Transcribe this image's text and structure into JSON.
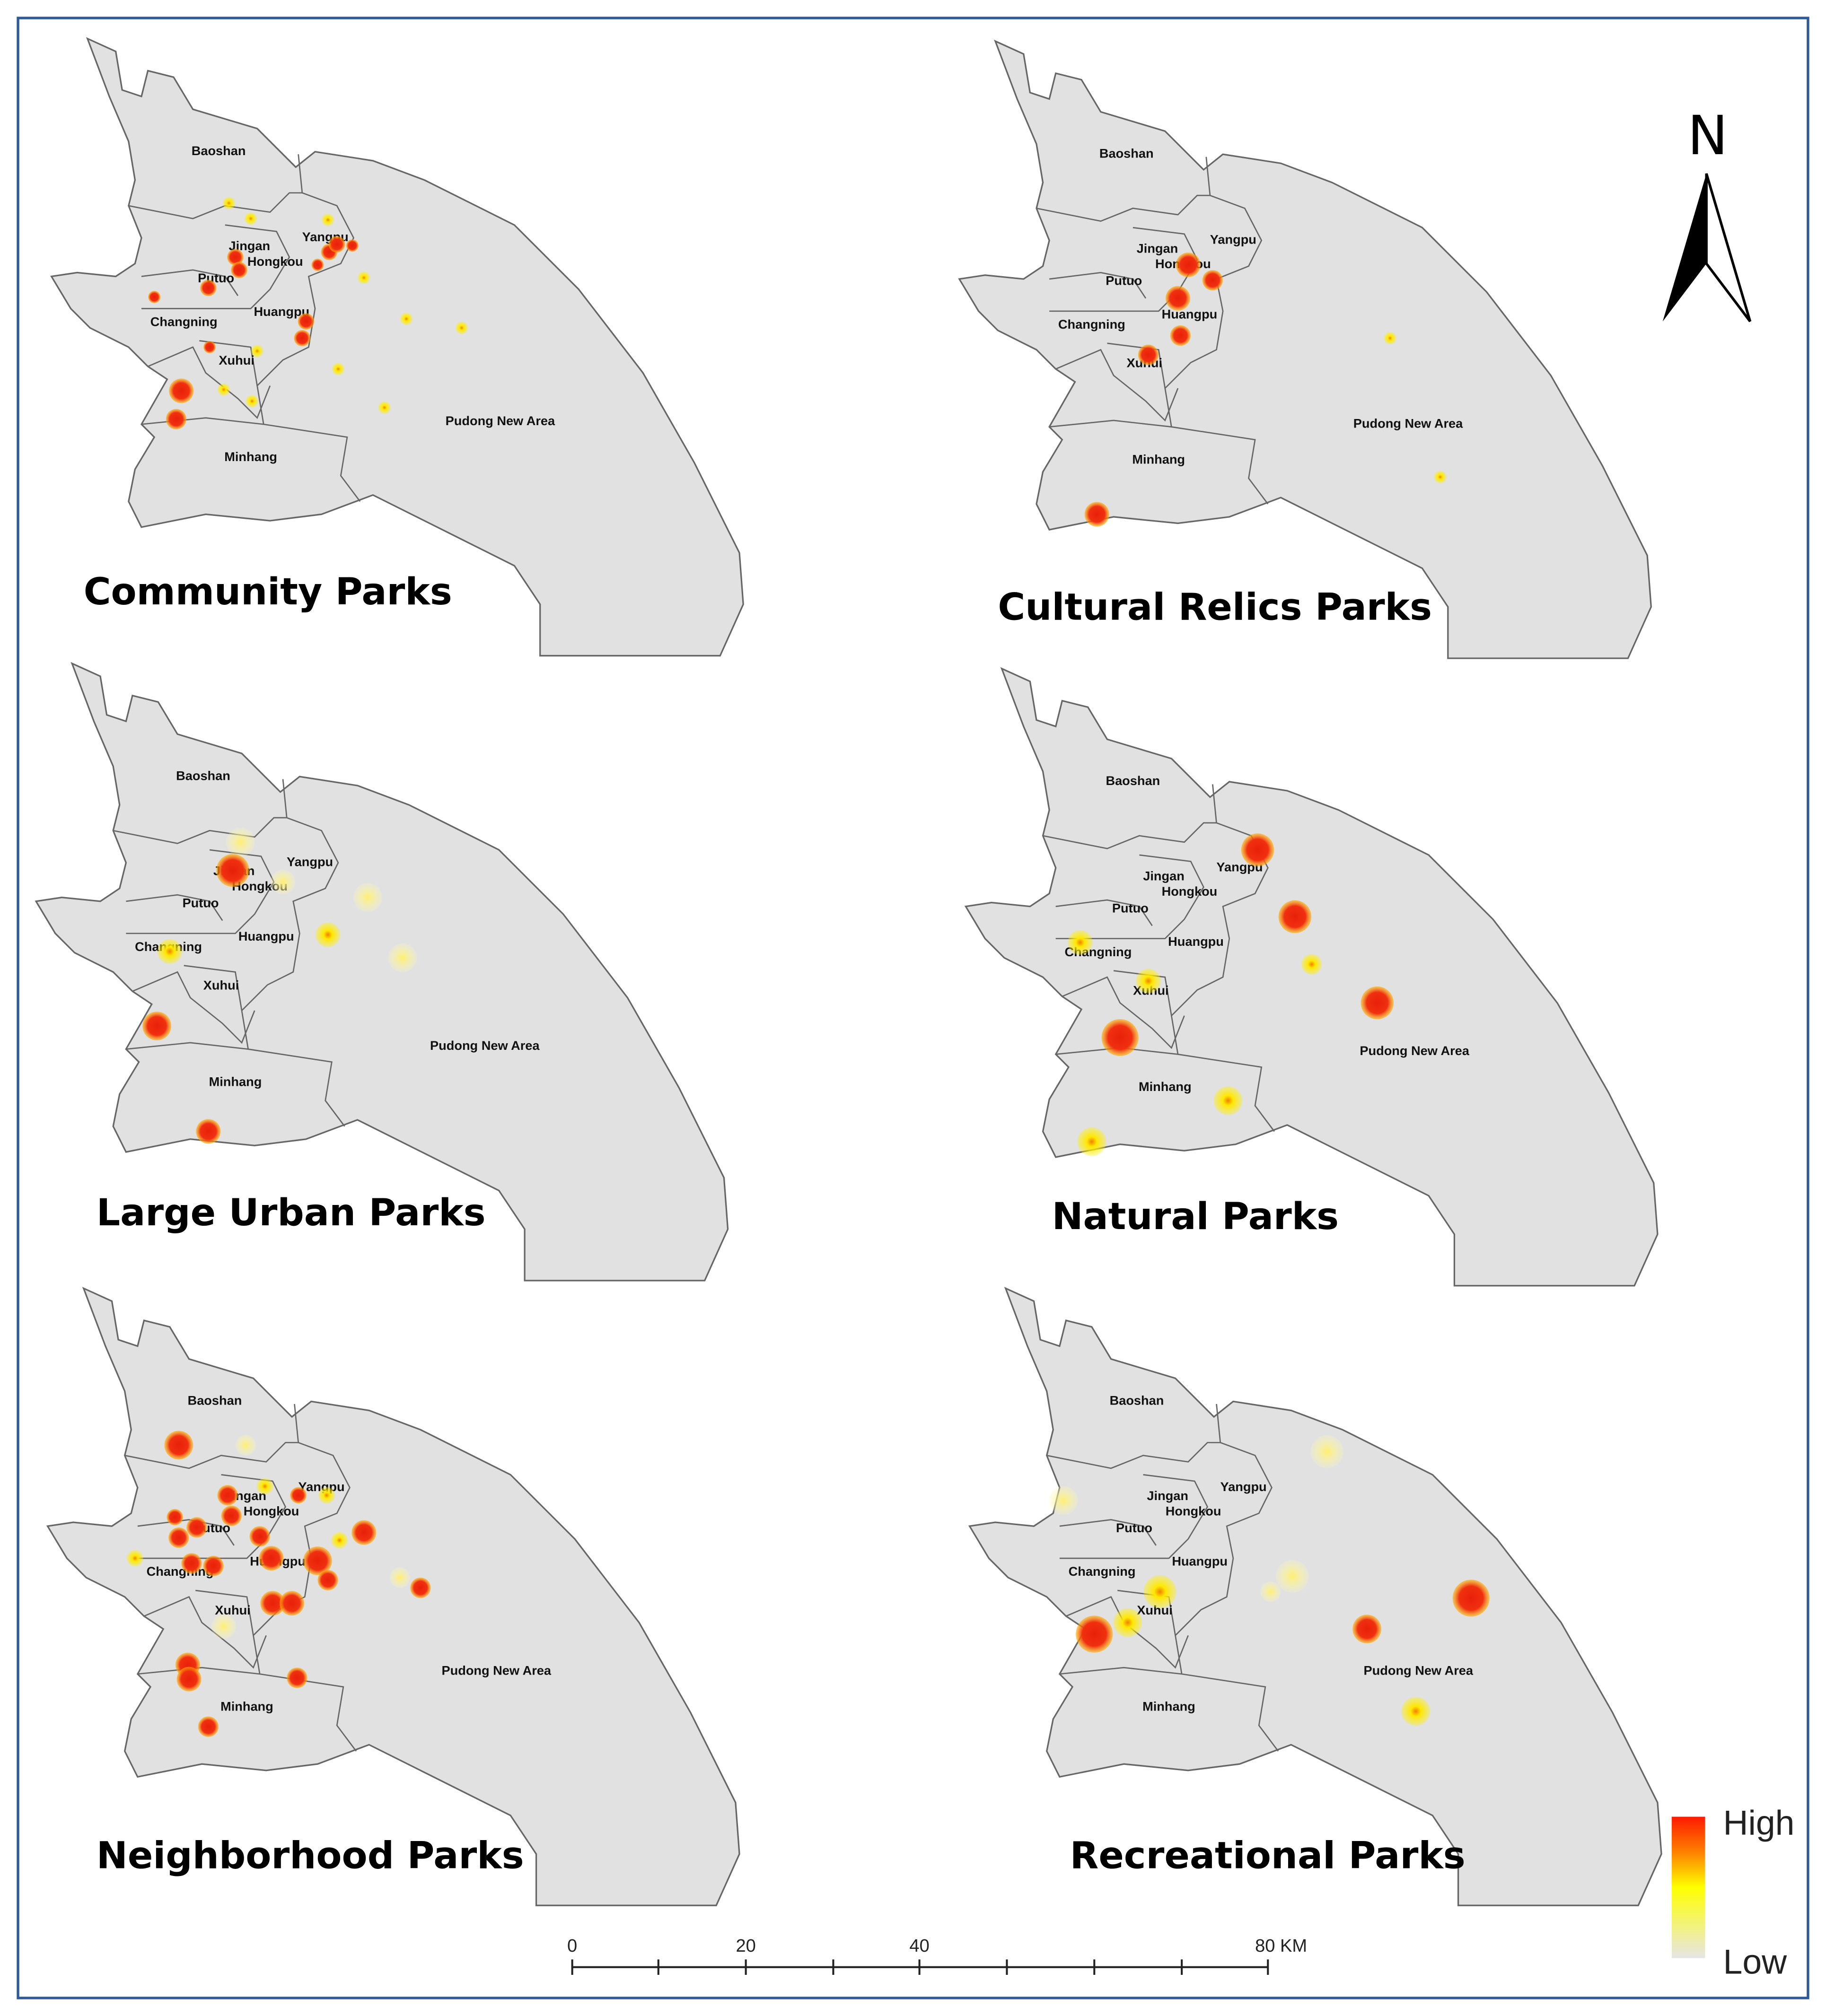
{
  "panels": [
    {
      "title": "Community Parks"
    },
    {
      "title": "Cultural Relics Parks"
    },
    {
      "title": "Large Urban Parks"
    },
    {
      "title": "Natural Parks"
    },
    {
      "title": "Neighborhood  Parks"
    },
    {
      "title": "Recreational Parks"
    }
  ],
  "district_labels": [
    "Baoshan",
    "Jingan",
    "Hongkou",
    "Yangpu",
    "Putuo",
    "Changning",
    "Huangpu",
    "Xuhui",
    "Minhang",
    "Pudong New Area"
  ],
  "north_label": "N",
  "legend": {
    "high": "High",
    "low": "Low"
  },
  "scale_bar": {
    "labels": [
      "0",
      "20",
      "40",
      "80 KM"
    ]
  }
}
